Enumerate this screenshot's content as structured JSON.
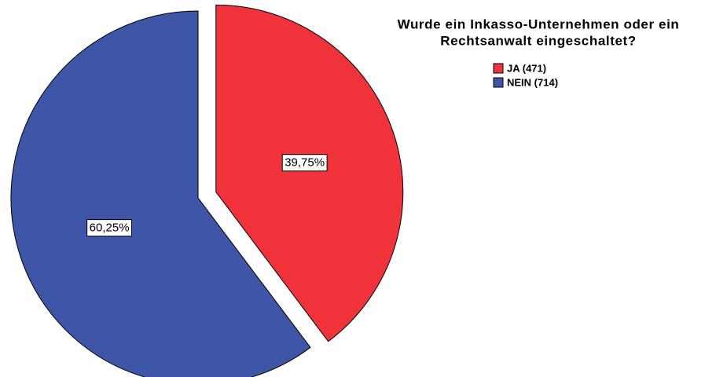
{
  "chart_data": {
    "type": "pie",
    "title": [
      "Wurde ein Inkasso-Unternehmen oder ein",
      "Rechtsanwalt eingeschaltet?"
    ],
    "categories": [
      "JA (471)",
      "NEIN (714)"
    ],
    "values": [
      39.75,
      60.25
    ],
    "value_labels": [
      "39,75%",
      "60,25%"
    ],
    "colors": [
      "#f0323a",
      "#3f55a8"
    ],
    "exploded": [
      true,
      false
    ],
    "legend": "top-right"
  }
}
